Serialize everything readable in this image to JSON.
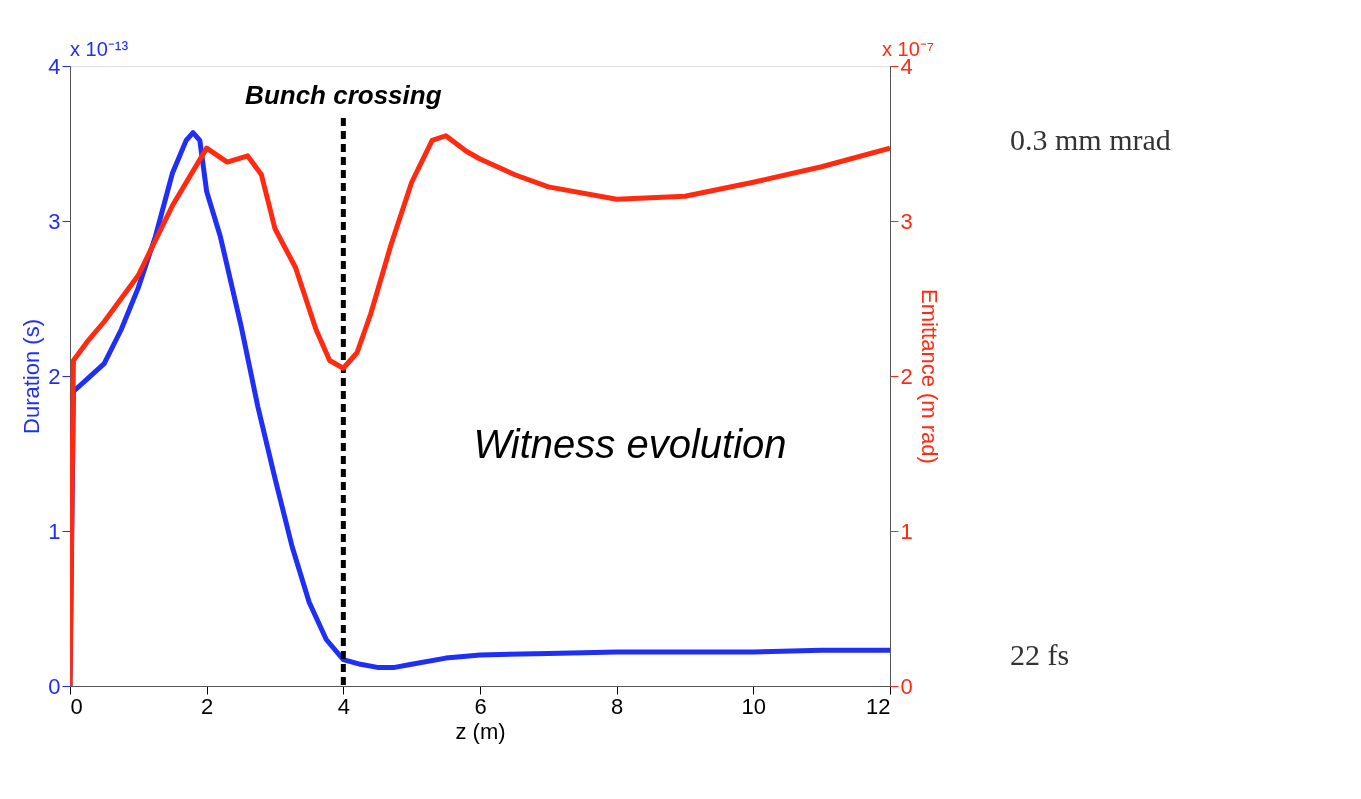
{
  "chart_data": {
    "type": "line",
    "xlabel": "z (m)",
    "ylabel": "Duration (s)",
    "y2label": "Emittance (m rad)",
    "xlim": [
      0,
      12
    ],
    "xticks": [
      0,
      2,
      4,
      6,
      8,
      10,
      12
    ],
    "ylim": [
      0,
      4
    ],
    "yticks": [
      0,
      1,
      2,
      3,
      4
    ],
    "y2lim": [
      0,
      4
    ],
    "y2ticks": [
      0,
      1,
      2,
      3,
      4
    ],
    "grid": false,
    "line_style": "solid",
    "series": [
      {
        "color": "#1f2ff5",
        "axis": "y",
        "x": [
          0,
          0.05,
          0.25,
          0.5,
          0.75,
          1,
          1.25,
          1.5,
          1.7,
          1.8,
          1.9,
          2,
          2.2,
          2.5,
          2.75,
          3,
          3.25,
          3.5,
          3.75,
          4,
          4.25,
          4.5,
          4.75,
          5,
          5.5,
          6,
          7,
          8,
          9,
          10,
          11,
          12
        ],
        "values": [
          0,
          1.9,
          1.98,
          2.08,
          2.3,
          2.57,
          2.9,
          3.31,
          3.52,
          3.57,
          3.52,
          3.19,
          2.9,
          2.33,
          1.8,
          1.34,
          0.9,
          0.54,
          0.3,
          0.17,
          0.14,
          0.12,
          0.12,
          0.14,
          0.18,
          0.2,
          0.21,
          0.22,
          0.22,
          0.22,
          0.23,
          0.23
        ]
      },
      {
        "color": "#ff2a10",
        "axis": "y2",
        "x": [
          0,
          0.05,
          0.25,
          0.5,
          1,
          1.5,
          2,
          2.3,
          2.6,
          2.8,
          3,
          3.3,
          3.6,
          3.8,
          4,
          4.2,
          4.4,
          4.7,
          5,
          5.3,
          5.5,
          5.8,
          6,
          6.5,
          7,
          8,
          9,
          10,
          11,
          12
        ],
        "values": [
          0,
          2.1,
          2.22,
          2.35,
          2.65,
          3.1,
          3.47,
          3.38,
          3.42,
          3.3,
          2.95,
          2.7,
          2.3,
          2.1,
          2.05,
          2.15,
          2.4,
          2.85,
          3.25,
          3.52,
          3.55,
          3.45,
          3.4,
          3.3,
          3.22,
          3.14,
          3.16,
          3.25,
          3.35,
          3.47
        ]
      }
    ],
    "ref_lines": [
      {
        "axis": "x",
        "value": 4,
        "label": "Bunch crossing",
        "color": "#000000",
        "line_style": "dashed"
      }
    ],
    "annotations": [
      "x 10⁻¹³",
      "x 10⁻⁷",
      "Witness evolution",
      "0.3 mm mrad",
      "22 fs"
    ]
  }
}
